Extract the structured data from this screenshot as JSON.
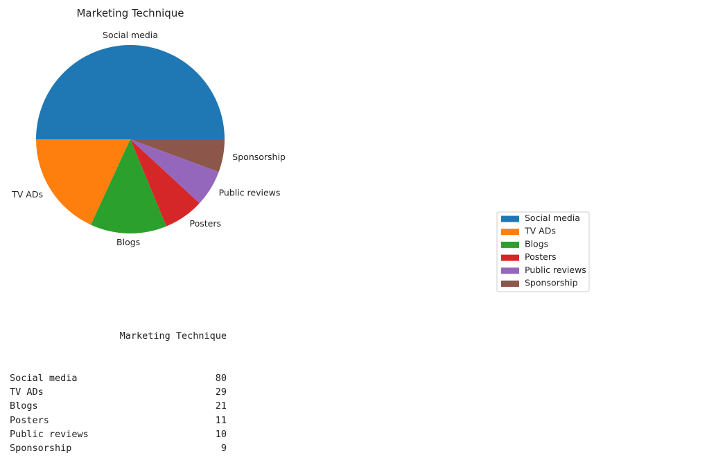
{
  "chart_data": {
    "type": "pie",
    "title": "Marketing Technique",
    "categories": [
      "Social media",
      "TV ADs",
      "Blogs",
      "Posters",
      "Public reviews",
      "Sponsorship"
    ],
    "values": [
      80,
      29,
      21,
      11,
      10,
      9
    ],
    "colors": [
      "#1f77b4",
      "#ff7f0e",
      "#2ca02c",
      "#d62728",
      "#9467bd",
      "#8c564b"
    ],
    "start_angle": 0,
    "direction": "counterclockwise",
    "legend": {
      "placement": "right",
      "entries": [
        "Social media",
        "TV ADs",
        "Blogs",
        "Posters",
        "Public reviews",
        "Sponsorship"
      ]
    }
  },
  "table": {
    "column_header": "Marketing Technique",
    "rows": [
      {
        "label": "Social media",
        "value": "80"
      },
      {
        "label": "TV ADs",
        "value": "29"
      },
      {
        "label": "Blogs",
        "value": "21"
      },
      {
        "label": "Posters",
        "value": "11"
      },
      {
        "label": "Public reviews",
        "value": "10"
      },
      {
        "label": "Sponsorship",
        "value": "9"
      }
    ]
  }
}
